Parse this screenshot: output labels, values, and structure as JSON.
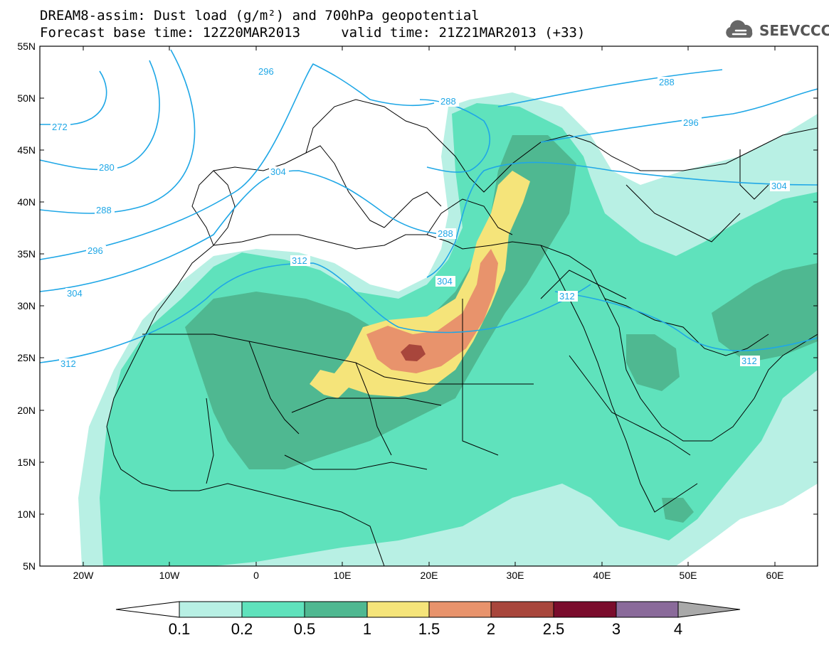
{
  "header": {
    "title_line1": "DREAM8-assim: Dust load (g/m²) and 700hPa geopotential",
    "title_line2": "Forecast base time: 12Z20MAR2013     valid time: 21Z21MAR2013 (+33)",
    "logo_text": "SEEVCCC"
  },
  "map": {
    "lon_range": [
      -25,
      65
    ],
    "lat_range": [
      5,
      55
    ],
    "lon_ticks": [
      "20W",
      "10W",
      "0",
      "10E",
      "20E",
      "30E",
      "40E",
      "50E",
      "60E"
    ],
    "lat_ticks": [
      "55N",
      "50N",
      "45N",
      "40N",
      "35N",
      "30N",
      "25N",
      "20N",
      "15N",
      "10N",
      "5N"
    ],
    "contour_color": "#1fa7e6",
    "contour_labels": [
      "296",
      "288",
      "272",
      "280",
      "288",
      "296",
      "304",
      "312",
      "304",
      "288",
      "296",
      "304",
      "288",
      "312",
      "304",
      "312",
      "312"
    ]
  },
  "colorbar": {
    "levels": [
      "0.1",
      "0.2",
      "0.5",
      "1",
      "1.5",
      "2",
      "2.5",
      "3",
      "4"
    ],
    "colors": [
      "#ffffff",
      "#b8f0e4",
      "#5fe2bc",
      "#4fb891",
      "#f5e47a",
      "#e8936c",
      "#a8463c",
      "#7a0c2c",
      "#8a6a9a",
      "#a9a9a9"
    ]
  }
}
